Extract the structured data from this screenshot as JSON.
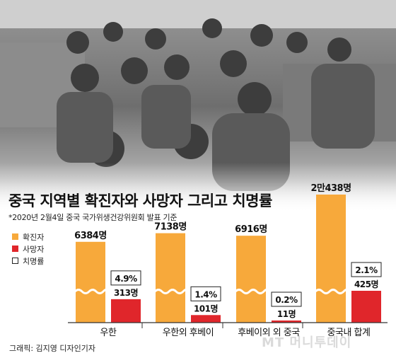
{
  "title": "중국 지역별 확진자와 사망자 그리고 치명률",
  "subtitle": "*2020년 2월4일 중국 국가위생건강위원회 발표 기준",
  "credit": "그래픽: 김지영 디자인기자",
  "watermark": "MT 머니투데이",
  "colors": {
    "confirmed": "#F7A93B",
    "deaths": "#E0262B",
    "fatality_box": "#ffffff"
  },
  "chart_data": {
    "type": "bar",
    "title": "중국 지역별 확진자와 사망자 그리고 치명률",
    "subtitle": "*2020년 2월4일 중국 국가위생건강위원회 발표 기준",
    "axis_break": true,
    "legend_placement": "left",
    "categories": [
      "우한",
      "우한외 후베이",
      "후베이외 외 중국",
      "중국내 합계"
    ],
    "series": [
      {
        "name": "확진자",
        "values": [
          6384,
          7138,
          6916,
          20438
        ],
        "labels": [
          "6384명",
          "7138명",
          "6916명",
          "2만438명"
        ]
      },
      {
        "name": "사망자",
        "values": [
          313,
          101,
          11,
          425
        ],
        "labels": [
          "313명",
          "101명",
          "11명",
          "425명"
        ]
      },
      {
        "name": "치명률",
        "values": [
          4.9,
          1.4,
          0.2,
          2.1
        ],
        "labels": [
          "4.9%",
          "1.4%",
          "0.2%",
          "2.1%"
        ]
      }
    ]
  }
}
